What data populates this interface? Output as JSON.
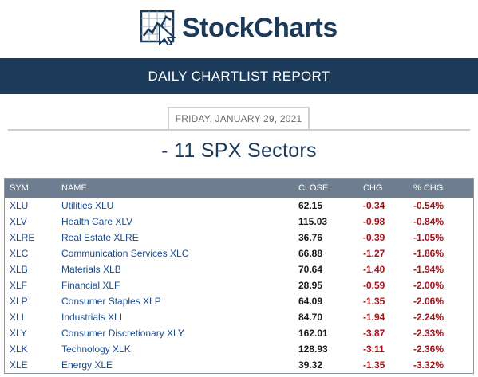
{
  "header": {
    "brand": "StockCharts",
    "logo_icon": "chart-cursor-icon",
    "brand_color": "#1c3b5a"
  },
  "banner": {
    "title": "DAILY CHARTLIST REPORT"
  },
  "report": {
    "date": "FRIDAY, JANUARY 29, 2021",
    "title": "- 11 SPX Sectors"
  },
  "table": {
    "columns": [
      "SYM",
      "NAME",
      "CLOSE",
      "CHG",
      "% CHG"
    ],
    "rows": [
      {
        "sym": "XLU",
        "name": "Utilities XLU",
        "close": "62.15",
        "chg": "-0.34",
        "pct": "-0.54%"
      },
      {
        "sym": "XLV",
        "name": "Health Care XLV",
        "close": "115.03",
        "chg": "-0.98",
        "pct": "-0.84%"
      },
      {
        "sym": "XLRE",
        "name": "Real Estate XLRE",
        "close": "36.76",
        "chg": "-0.39",
        "pct": "-1.05%"
      },
      {
        "sym": "XLC",
        "name": "Communication Services XLC",
        "close": "66.88",
        "chg": "-1.27",
        "pct": "-1.86%"
      },
      {
        "sym": "XLB",
        "name": "Materials XLB",
        "close": "70.64",
        "chg": "-1.40",
        "pct": "-1.94%"
      },
      {
        "sym": "XLF",
        "name": "Financial XLF",
        "close": "28.95",
        "chg": "-0.59",
        "pct": "-2.00%"
      },
      {
        "sym": "XLP",
        "name": "Consumer Staples XLP",
        "close": "64.09",
        "chg": "-1.35",
        "pct": "-2.06%"
      },
      {
        "sym": "XLI",
        "name": "Industrials XLI",
        "close": "84.70",
        "chg": "-1.94",
        "pct": "-2.24%"
      },
      {
        "sym": "XLY",
        "name": "Consumer Discretionary XLY",
        "close": "162.01",
        "chg": "-3.87",
        "pct": "-2.33%"
      },
      {
        "sym": "XLK",
        "name": "Technology XLK",
        "close": "128.93",
        "chg": "-3.11",
        "pct": "-2.36%"
      },
      {
        "sym": "XLE",
        "name": "Energy XLE",
        "close": "39.32",
        "chg": "-1.35",
        "pct": "-3.32%"
      }
    ]
  }
}
